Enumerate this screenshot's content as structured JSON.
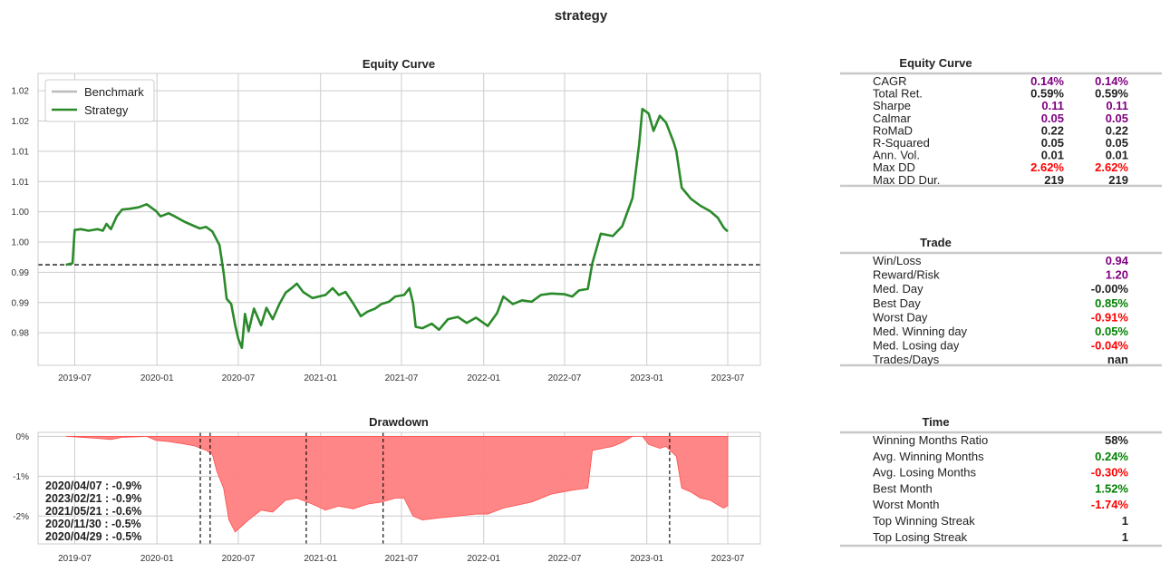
{
  "figure": {
    "suptitle": "strategy"
  },
  "colors": {
    "strategy": "#2a8a2a",
    "benchmark": "#bbbbbb",
    "drawdown_fill": "#ff8080",
    "drawdown_line": "#ff4d4d",
    "purple": "#800080",
    "green": "#008000",
    "red": "#ff0000",
    "black": "#222222"
  },
  "chart_data": [
    {
      "id": "equity",
      "type": "line",
      "title": "Equity Curve",
      "xlabel": "",
      "ylabel": "",
      "x_tick_labels": [
        "2019-07",
        "2020-01",
        "2020-07",
        "2021-01",
        "2021-07",
        "2022-01",
        "2022-07",
        "2023-01",
        "2023-07"
      ],
      "y_tick_labels": [
        "1.02",
        "1.02",
        "1.01",
        "1.01",
        "1.00",
        "1.00",
        "0.99",
        "0.99",
        "0.98"
      ],
      "xlim": [
        "2019-04-10",
        "2023-09-12"
      ],
      "ylim": [
        0.9867,
        1.0253
      ],
      "grid": true,
      "legend": {
        "placement": "upper-left",
        "entries": [
          "Benchmark",
          "Strategy"
        ]
      },
      "reference_line": {
        "y": 1.0,
        "style": "dashed"
      },
      "series": [
        {
          "name": "Benchmark",
          "values": []
        },
        {
          "name": "Strategy",
          "points": [
            [
              "2019-06-11",
              1.0
            ],
            [
              "2019-06-26",
              1.0002
            ],
            [
              "2019-07-01",
              1.0046
            ],
            [
              "2019-07-15",
              1.0047
            ],
            [
              "2019-08-01",
              1.0045
            ],
            [
              "2019-08-21",
              1.0047
            ],
            [
              "2019-09-02",
              1.0045
            ],
            [
              "2019-09-10",
              1.0054
            ],
            [
              "2019-09-20",
              1.0047
            ],
            [
              "2019-10-03",
              1.0064
            ],
            [
              "2019-10-15",
              1.0073
            ],
            [
              "2019-11-01",
              1.0074
            ],
            [
              "2019-11-21",
              1.0076
            ],
            [
              "2019-12-09",
              1.008
            ],
            [
              "2019-12-30",
              1.0071
            ],
            [
              "2020-01-09",
              1.0064
            ],
            [
              "2020-01-27",
              1.0068
            ],
            [
              "2020-02-10",
              1.0064
            ],
            [
              "2020-03-02",
              1.0057
            ],
            [
              "2020-03-25",
              1.0051
            ],
            [
              "2020-04-06",
              1.0048
            ],
            [
              "2020-04-20",
              1.005
            ],
            [
              "2020-05-04",
              1.0044
            ],
            [
              "2020-05-20",
              1.0026
            ],
            [
              "2020-05-29",
              0.999
            ],
            [
              "2020-06-05",
              0.9955
            ],
            [
              "2020-06-15",
              0.9948
            ],
            [
              "2020-06-24",
              0.992
            ],
            [
              "2020-07-01",
              0.9902
            ],
            [
              "2020-07-09",
              0.989
            ],
            [
              "2020-07-16",
              0.9935
            ],
            [
              "2020-07-24",
              0.9912
            ],
            [
              "2020-08-05",
              0.9942
            ],
            [
              "2020-08-21",
              0.992
            ],
            [
              "2020-09-02",
              0.9943
            ],
            [
              "2020-09-16",
              0.9928
            ],
            [
              "2020-10-01",
              0.9948
            ],
            [
              "2020-10-15",
              0.9963
            ],
            [
              "2020-10-26",
              0.9968
            ],
            [
              "2020-11-09",
              0.9975
            ],
            [
              "2020-11-23",
              0.9964
            ],
            [
              "2020-12-14",
              0.9956
            ],
            [
              "2021-01-12",
              0.996
            ],
            [
              "2021-01-28",
              0.9969
            ],
            [
              "2021-02-11",
              0.996
            ],
            [
              "2021-02-26",
              0.9964
            ],
            [
              "2021-03-15",
              0.9949
            ],
            [
              "2021-04-01",
              0.9932
            ],
            [
              "2021-04-16",
              0.9938
            ],
            [
              "2021-05-03",
              0.9942
            ],
            [
              "2021-05-17",
              0.9948
            ],
            [
              "2021-06-03",
              0.9951
            ],
            [
              "2021-06-17",
              0.9958
            ],
            [
              "2021-07-07",
              0.996
            ],
            [
              "2021-07-19",
              0.9969
            ],
            [
              "2021-07-27",
              0.9949
            ],
            [
              "2021-08-02",
              0.9918
            ],
            [
              "2021-08-17",
              0.9916
            ],
            [
              "2021-09-07",
              0.9922
            ],
            [
              "2021-09-23",
              0.9914
            ],
            [
              "2021-10-13",
              0.9928
            ],
            [
              "2021-11-04",
              0.9931
            ],
            [
              "2021-11-24",
              0.9923
            ],
            [
              "2021-12-15",
              0.993
            ],
            [
              "2022-01-10",
              0.9919
            ],
            [
              "2022-01-31",
              0.9936
            ],
            [
              "2022-02-14",
              0.9958
            ],
            [
              "2022-03-07",
              0.9948
            ],
            [
              "2022-03-28",
              0.9953
            ],
            [
              "2022-04-18",
              0.9951
            ],
            [
              "2022-05-09",
              0.996
            ],
            [
              "2022-06-01",
              0.9962
            ],
            [
              "2022-07-01",
              0.9961
            ],
            [
              "2022-07-18",
              0.9958
            ],
            [
              "2022-08-02",
              0.9966
            ],
            [
              "2022-08-22",
              0.9968
            ],
            [
              "2022-09-01",
              1.0002
            ],
            [
              "2022-09-20",
              1.0041
            ],
            [
              "2022-10-17",
              1.0038
            ],
            [
              "2022-11-07",
              1.0051
            ],
            [
              "2022-11-30",
              1.0088
            ],
            [
              "2022-12-15",
              1.016
            ],
            [
              "2022-12-22",
              1.0206
            ],
            [
              "2023-01-05",
              1.02
            ],
            [
              "2023-01-16",
              1.0177
            ],
            [
              "2023-01-30",
              1.0197
            ],
            [
              "2023-02-13",
              1.0188
            ],
            [
              "2023-03-02",
              1.0162
            ],
            [
              "2023-03-08",
              1.015
            ],
            [
              "2023-03-20",
              1.0102
            ],
            [
              "2023-04-10",
              1.0087
            ],
            [
              "2023-05-01",
              1.0078
            ],
            [
              "2023-05-22",
              1.0071
            ],
            [
              "2023-06-09",
              1.0062
            ],
            [
              "2023-06-22",
              1.0049
            ],
            [
              "2023-07-01",
              1.0044
            ]
          ]
        }
      ]
    },
    {
      "id": "drawdown",
      "type": "area",
      "title": "Drawdown",
      "x_tick_labels": [
        "2019-07",
        "2020-01",
        "2020-07",
        "2021-01",
        "2021-07",
        "2022-01",
        "2022-07",
        "2023-01",
        "2023-07"
      ],
      "y_tick_labels": [
        "0%",
        "-1%",
        "-2%"
      ],
      "xlim": [
        "2019-04-10",
        "2023-09-12"
      ],
      "ylim": [
        -2.7,
        0.1
      ],
      "grid": true,
      "series": [
        {
          "name": "",
          "points": [
            [
              "2019-06-11",
              0.0
            ],
            [
              "2019-07-15",
              -0.02
            ],
            [
              "2019-08-21",
              -0.05
            ],
            [
              "2019-09-20",
              -0.08
            ],
            [
              "2019-10-15",
              -0.02
            ],
            [
              "2019-11-21",
              -0.01
            ],
            [
              "2019-12-09",
              0.0
            ],
            [
              "2019-12-30",
              -0.1
            ],
            [
              "2020-01-27",
              -0.13
            ],
            [
              "2020-02-26",
              -0.18
            ],
            [
              "2020-03-25",
              -0.24
            ],
            [
              "2020-04-20",
              -0.35
            ],
            [
              "2020-05-04",
              -0.45
            ],
            [
              "2020-05-14",
              -0.88
            ],
            [
              "2020-05-29",
              -1.3
            ],
            [
              "2020-06-10",
              -2.1
            ],
            [
              "2020-06-24",
              -2.4
            ],
            [
              "2020-07-09",
              -2.25
            ],
            [
              "2020-07-24",
              -2.1
            ],
            [
              "2020-08-21",
              -1.85
            ],
            [
              "2020-09-16",
              -1.9
            ],
            [
              "2020-10-15",
              -1.6
            ],
            [
              "2020-11-09",
              -1.55
            ],
            [
              "2020-12-14",
              -1.7
            ],
            [
              "2021-01-12",
              -1.85
            ],
            [
              "2021-02-11",
              -1.75
            ],
            [
              "2021-03-15",
              -1.82
            ],
            [
              "2021-04-16",
              -1.7
            ],
            [
              "2021-05-17",
              -1.65
            ],
            [
              "2021-06-17",
              -1.55
            ],
            [
              "2021-07-07",
              -1.55
            ],
            [
              "2021-07-27",
              -2.0
            ],
            [
              "2021-08-17",
              -2.1
            ],
            [
              "2021-09-23",
              -2.05
            ],
            [
              "2021-11-04",
              -2.0
            ],
            [
              "2021-12-15",
              -1.95
            ],
            [
              "2022-01-10",
              -1.95
            ],
            [
              "2022-02-14",
              -1.8
            ],
            [
              "2022-04-18",
              -1.65
            ],
            [
              "2022-06-01",
              -1.45
            ],
            [
              "2022-07-18",
              -1.35
            ],
            [
              "2022-08-22",
              -1.3
            ],
            [
              "2022-09-01",
              -0.35
            ],
            [
              "2022-10-17",
              -0.25
            ],
            [
              "2022-11-07",
              -0.15
            ],
            [
              "2022-11-30",
              0.0
            ],
            [
              "2022-12-22",
              0.0
            ],
            [
              "2023-01-05",
              -0.2
            ],
            [
              "2023-01-30",
              -0.3
            ],
            [
              "2023-02-13",
              -0.25
            ],
            [
              "2023-03-08",
              -0.5
            ],
            [
              "2023-03-20",
              -1.3
            ],
            [
              "2023-04-10",
              -1.4
            ],
            [
              "2023-05-01",
              -1.55
            ],
            [
              "2023-05-22",
              -1.6
            ],
            [
              "2023-06-09",
              -1.72
            ],
            [
              "2023-06-22",
              -1.8
            ],
            [
              "2023-07-01",
              -1.74
            ]
          ]
        }
      ],
      "vlines": [
        "2020-04-07",
        "2020-04-29",
        "2020-11-30",
        "2021-05-21",
        "2023-02-21"
      ],
      "annotations": [
        "2020/04/07 : -0.9%",
        "2023/02/21 : -0.9%",
        "2021/05/21 : -0.6%",
        "2020/11/30 : -0.5%",
        "2020/04/29 : -0.5%"
      ]
    }
  ],
  "tables": [
    {
      "title": "Equity Curve",
      "rows": [
        {
          "label": "CAGR",
          "v1": "0.14%",
          "v2": "0.14%",
          "color": "purple"
        },
        {
          "label": "Total Ret.",
          "v1": "0.59%",
          "v2": "0.59%",
          "color": "black"
        },
        {
          "label": "Sharpe",
          "v1": "0.11",
          "v2": "0.11",
          "color": "purple"
        },
        {
          "label": "Calmar",
          "v1": "0.05",
          "v2": "0.05",
          "color": "purple"
        },
        {
          "label": "RoMaD",
          "v1": "0.22",
          "v2": "0.22",
          "color": "black"
        },
        {
          "label": "R-Squared",
          "v1": "0.05",
          "v2": "0.05",
          "color": "black"
        },
        {
          "label": "Ann. Vol.",
          "v1": "0.01",
          "v2": "0.01",
          "color": "black"
        },
        {
          "label": "Max DD",
          "v1": "2.62%",
          "v2": "2.62%",
          "color": "red"
        },
        {
          "label": "Max DD Dur.",
          "v1": "219",
          "v2": "219",
          "color": "black"
        }
      ]
    },
    {
      "title": "Trade",
      "rows": [
        {
          "label": "Win/Loss",
          "v2": "0.94",
          "color": "purple"
        },
        {
          "label": "Reward/Risk",
          "v2": "1.20",
          "color": "purple"
        },
        {
          "label": "Med. Day",
          "v2": "-0.00%",
          "color": "black"
        },
        {
          "label": "Best Day",
          "v2": "0.85%",
          "color": "green"
        },
        {
          "label": "Worst Day",
          "v2": "-0.91%",
          "color": "red"
        },
        {
          "label": "Med. Winning day",
          "v2": "0.05%",
          "color": "green"
        },
        {
          "label": "Med. Losing day",
          "v2": "-0.04%",
          "color": "red"
        },
        {
          "label": "Trades/Days",
          "v2": "nan",
          "color": "black"
        }
      ]
    },
    {
      "title": "Time",
      "rows": [
        {
          "label": "Winning Months Ratio",
          "v2": "58%",
          "color": "black"
        },
        {
          "label": "Avg. Winning Months",
          "v2": "0.24%",
          "color": "green"
        },
        {
          "label": "Avg. Losing Months",
          "v2": "-0.30%",
          "color": "red"
        },
        {
          "label": "Best Month",
          "v2": "1.52%",
          "color": "green"
        },
        {
          "label": "Worst Month",
          "v2": "-1.74%",
          "color": "red"
        },
        {
          "label": "Top Winning Streak",
          "v2": "1",
          "color": "black"
        },
        {
          "label": "Top Losing Streak",
          "v2": "1",
          "color": "black"
        }
      ]
    }
  ]
}
